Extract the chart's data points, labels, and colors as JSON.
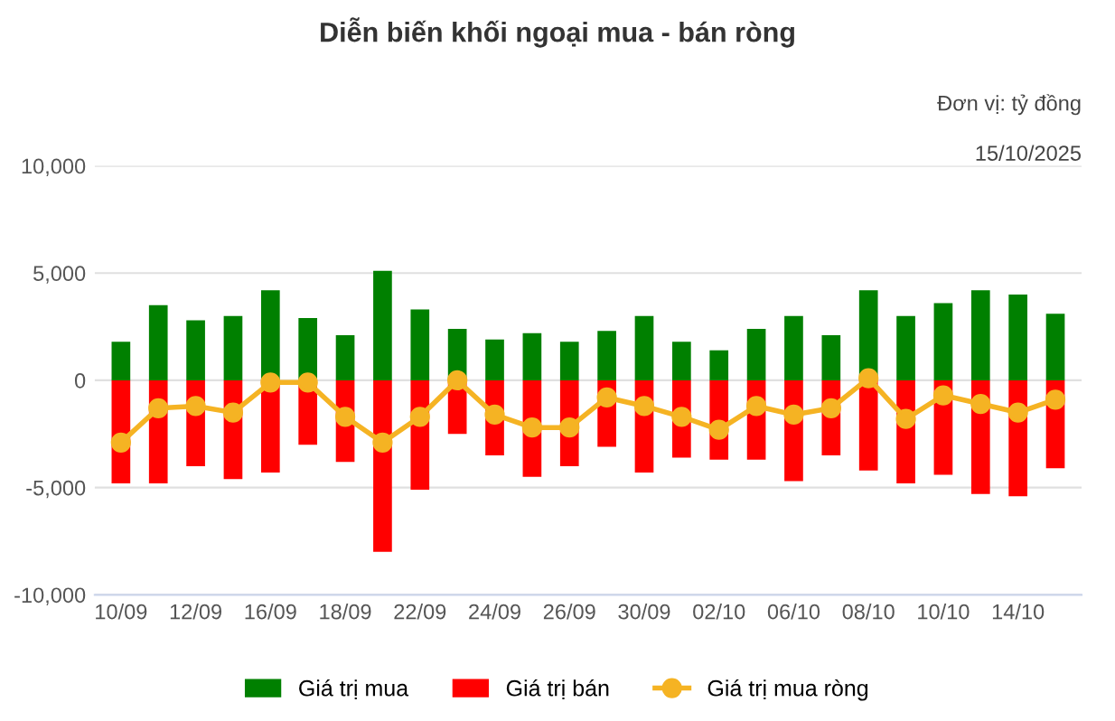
{
  "chart_data": {
    "type": "bar",
    "stacked": true,
    "title": "Diễn biến khối ngoại mua - bán ròng",
    "annotations": [
      "Đơn vị: tỷ đồng",
      "15/10/2025"
    ],
    "categories": [
      "10/09",
      null,
      "12/09",
      null,
      "16/09",
      null,
      "18/09",
      null,
      "22/09",
      null,
      "24/09",
      null,
      "26/09",
      null,
      "30/09",
      null,
      "02/10",
      null,
      "06/10",
      null,
      "08/10",
      null,
      "10/10",
      null,
      "14/10",
      null
    ],
    "series": [
      {
        "name": "Giá trị mua",
        "color": "#008000",
        "values": [
          1800,
          3500,
          2800,
          3000,
          4200,
          2900,
          2100,
          5100,
          3300,
          2400,
          1900,
          2200,
          1800,
          2300,
          3000,
          1800,
          1400,
          2400,
          3000,
          2100,
          4200,
          3000,
          3600,
          4200,
          4000,
          3100
        ]
      },
      {
        "name": "Giá trị bán",
        "color": "#ff0000",
        "values": [
          -4800,
          -4800,
          -4000,
          -4600,
          -4300,
          -3000,
          -3800,
          -8000,
          -5100,
          -2500,
          -3500,
          -4500,
          -4000,
          -3100,
          -4300,
          -3600,
          -3700,
          -3700,
          -4700,
          -3500,
          -4200,
          -4800,
          -4400,
          -5300,
          -5400,
          -4100
        ]
      },
      {
        "name": "Giá trị mua ròng",
        "color": "#f5b323",
        "type": "line",
        "values": [
          -2900,
          -1300,
          -1200,
          -1500,
          -100,
          -100,
          -1700,
          -2900,
          -1700,
          0,
          -1600,
          -2200,
          -2200,
          -800,
          -1200,
          -1700,
          -2300,
          -1200,
          -1600,
          -1300,
          100,
          -1800,
          -700,
          -1100,
          -1500,
          -900
        ]
      }
    ],
    "ylim": [
      -10000,
      10000
    ],
    "yticks": [
      {
        "value": -10000,
        "label": "-10,000"
      },
      {
        "value": -5000,
        "label": "-5,000"
      },
      0,
      {
        "value": 5000,
        "label": "5,000"
      },
      {
        "value": 10000,
        "label": "10,000"
      }
    ],
    "grid": "y",
    "legend": "bottom",
    "marker": "circle",
    "line_style": "solid"
  }
}
